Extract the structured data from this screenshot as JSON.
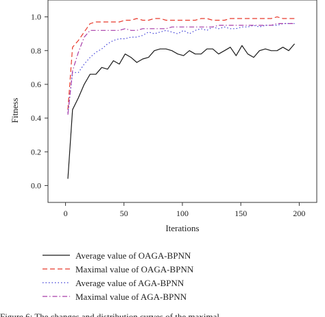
{
  "chart_data": {
    "type": "line",
    "xlabel": "Iterations",
    "ylabel": "Fitness",
    "xlim": [
      -15,
      215
    ],
    "ylim": [
      -0.1,
      1.1
    ],
    "xticks": [
      0,
      50,
      100,
      150,
      200
    ],
    "yticks": [
      0.0,
      0.2,
      0.4,
      0.6,
      0.8,
      1.0
    ],
    "legend_position": "below",
    "grid": false,
    "series": [
      {
        "name": "Average value of OAGA-BPNN",
        "color": "#1a1a1a",
        "dash": "solid",
        "x": [
          2,
          6,
          11,
          16,
          21,
          26,
          31,
          36,
          41,
          46,
          51,
          56,
          61,
          66,
          71,
          76,
          81,
          86,
          91,
          96,
          101,
          106,
          111,
          116,
          121,
          126,
          131,
          136,
          141,
          146,
          151,
          156,
          161,
          166,
          171,
          176,
          181,
          186,
          191,
          196
        ],
        "y": [
          0.04,
          0.45,
          0.52,
          0.6,
          0.66,
          0.66,
          0.7,
          0.69,
          0.74,
          0.72,
          0.78,
          0.76,
          0.73,
          0.75,
          0.76,
          0.8,
          0.81,
          0.81,
          0.8,
          0.78,
          0.77,
          0.8,
          0.78,
          0.78,
          0.81,
          0.81,
          0.78,
          0.8,
          0.82,
          0.77,
          0.83,
          0.78,
          0.76,
          0.8,
          0.81,
          0.8,
          0.8,
          0.82,
          0.8,
          0.84
        ]
      },
      {
        "name": "Maximal value of OAGA-BPNN",
        "color": "#e8392c",
        "dash": "dashed",
        "x": [
          2,
          6,
          11,
          16,
          21,
          26,
          31,
          36,
          41,
          46,
          51,
          56,
          61,
          66,
          71,
          76,
          81,
          86,
          91,
          96,
          101,
          106,
          111,
          116,
          121,
          126,
          131,
          136,
          141,
          146,
          151,
          156,
          161,
          166,
          171,
          176,
          181,
          186,
          191,
          196
        ],
        "y": [
          0.45,
          0.82,
          0.86,
          0.91,
          0.96,
          0.97,
          0.97,
          0.97,
          0.97,
          0.97,
          0.98,
          0.98,
          0.99,
          0.98,
          0.98,
          0.99,
          0.99,
          0.98,
          0.98,
          0.98,
          0.98,
          0.98,
          0.98,
          0.99,
          0.99,
          0.98,
          0.98,
          0.98,
          0.99,
          0.99,
          0.99,
          0.99,
          0.99,
          0.99,
          0.99,
          0.99,
          1.0,
          0.99,
          0.99,
          0.99
        ]
      },
      {
        "name": "Average value of AGA-BPNN",
        "color": "#3b3bd6",
        "dash": "dotted",
        "x": [
          2,
          6,
          11,
          16,
          21,
          26,
          31,
          36,
          41,
          46,
          51,
          56,
          61,
          66,
          71,
          76,
          81,
          86,
          91,
          96,
          101,
          106,
          111,
          116,
          121,
          126,
          131,
          136,
          141,
          146,
          151,
          156,
          161,
          166,
          171,
          176,
          181,
          186,
          191,
          196
        ],
        "y": [
          0.43,
          0.67,
          0.67,
          0.72,
          0.76,
          0.79,
          0.81,
          0.84,
          0.86,
          0.87,
          0.87,
          0.88,
          0.88,
          0.89,
          0.91,
          0.9,
          0.91,
          0.92,
          0.91,
          0.9,
          0.92,
          0.9,
          0.92,
          0.93,
          0.92,
          0.94,
          0.93,
          0.94,
          0.93,
          0.93,
          0.94,
          0.94,
          0.95,
          0.94,
          0.95,
          0.95,
          0.95,
          0.96,
          0.96,
          0.96
        ]
      },
      {
        "name": "Maximal value of AGA-BPNN",
        "color": "#a63aa8",
        "dash": "dashdot",
        "x": [
          2,
          6,
          11,
          16,
          21,
          26,
          31,
          36,
          41,
          46,
          51,
          56,
          61,
          66,
          71,
          76,
          81,
          86,
          91,
          96,
          101,
          106,
          111,
          116,
          121,
          126,
          131,
          136,
          141,
          146,
          151,
          156,
          161,
          166,
          171,
          176,
          181,
          186,
          191,
          196
        ],
        "y": [
          0.42,
          0.68,
          0.79,
          0.88,
          0.92,
          0.92,
          0.92,
          0.92,
          0.92,
          0.92,
          0.93,
          0.92,
          0.92,
          0.93,
          0.93,
          0.93,
          0.93,
          0.93,
          0.94,
          0.94,
          0.94,
          0.94,
          0.94,
          0.94,
          0.94,
          0.94,
          0.95,
          0.95,
          0.95,
          0.95,
          0.95,
          0.95,
          0.95,
          0.95,
          0.95,
          0.95,
          0.96,
          0.96,
          0.96,
          0.96
        ]
      }
    ]
  },
  "caption": "Figure 6: The changes and distribution curves of the maximal"
}
